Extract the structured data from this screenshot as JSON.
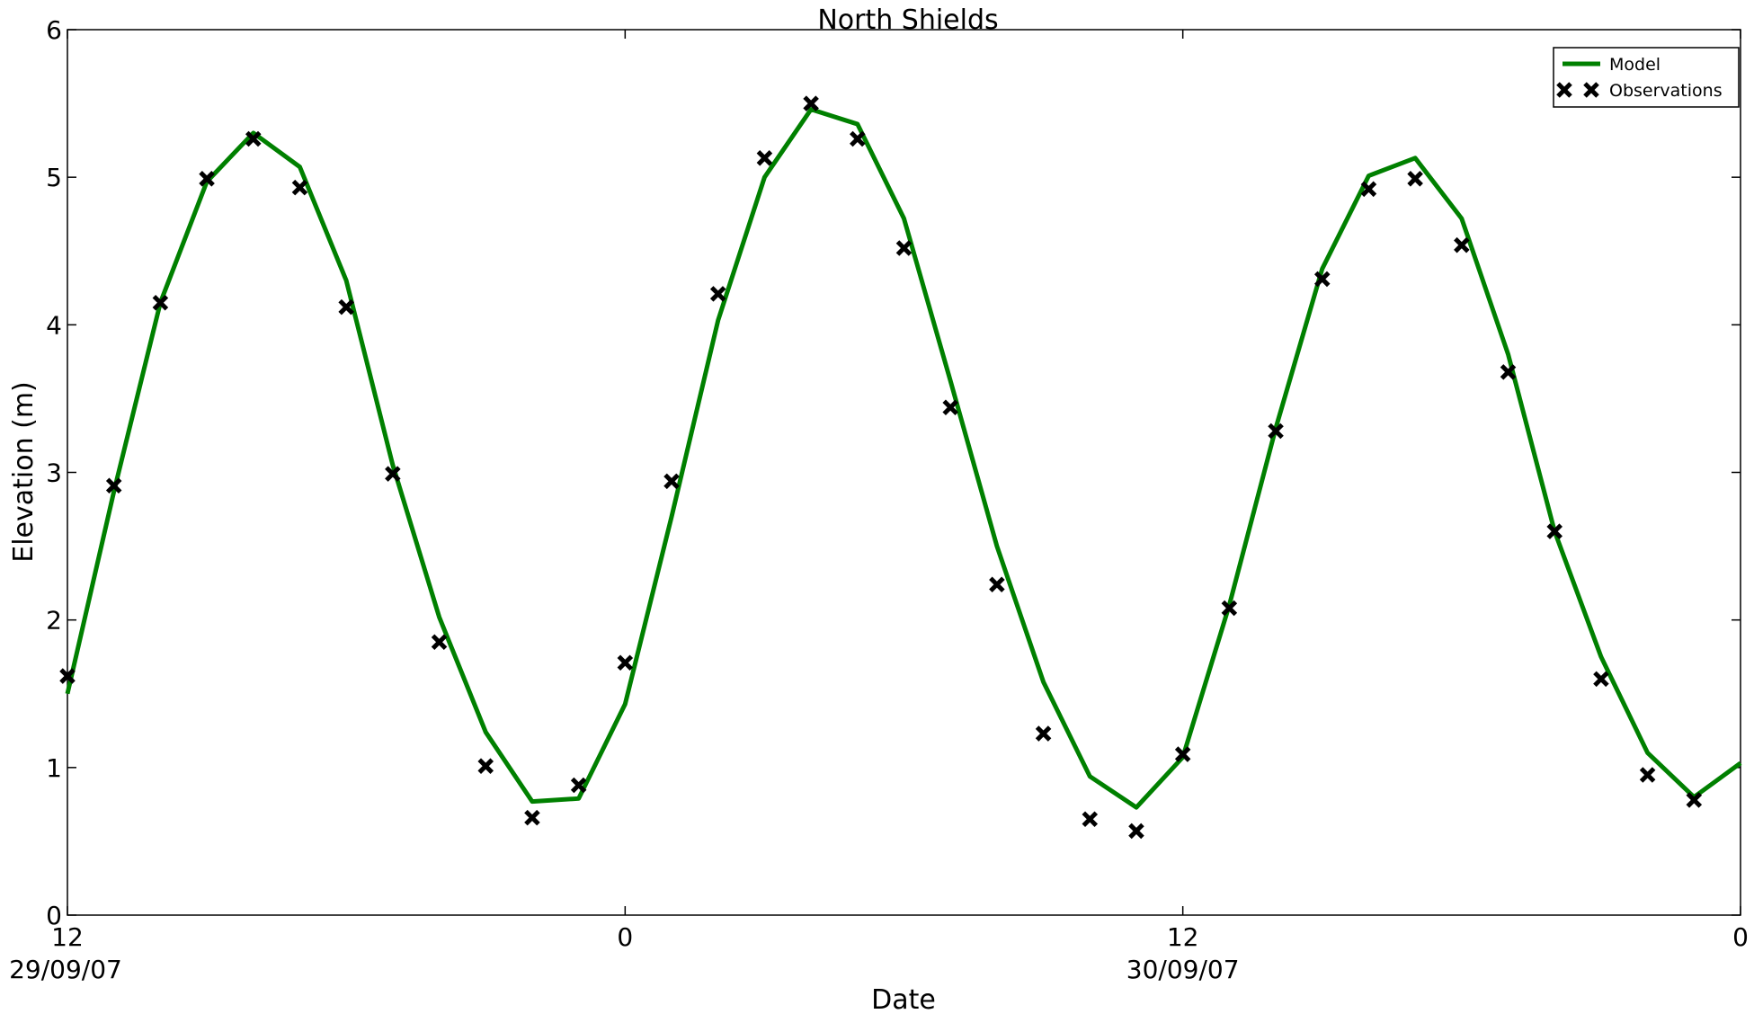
{
  "chart_data": {
    "type": "line",
    "title": "North Shields",
    "x_label": "Date",
    "y_label": "Elevation (m)",
    "x": [
      0,
      1,
      2,
      3,
      4,
      5,
      6,
      7,
      8,
      9,
      10,
      11,
      12,
      13,
      14,
      15,
      16,
      17,
      18,
      19,
      20,
      21,
      22,
      23,
      24,
      25,
      26,
      27,
      28,
      29,
      30,
      31,
      32,
      33,
      34,
      35,
      36
    ],
    "series": [
      {
        "name": "Model",
        "color": "#008000",
        "style": "line",
        "values": [
          1.5,
          2.87,
          4.15,
          4.97,
          5.3,
          5.07,
          4.3,
          3.05,
          2.02,
          1.24,
          0.77,
          0.79,
          1.43,
          2.7,
          4.03,
          5.0,
          5.46,
          5.36,
          4.72,
          3.62,
          2.5,
          1.58,
          0.94,
          0.73,
          1.07,
          2.1,
          3.3,
          4.38,
          5.01,
          5.13,
          4.72,
          3.8,
          2.6,
          1.75,
          1.1,
          0.8,
          1.03
        ]
      },
      {
        "name": "Observations",
        "color": "#000000",
        "style": "marker",
        "values": [
          1.62,
          2.91,
          4.15,
          4.99,
          5.26,
          4.93,
          4.12,
          2.99,
          1.85,
          1.01,
          0.66,
          0.88,
          1.71,
          2.94,
          4.21,
          5.13,
          5.5,
          5.26,
          4.52,
          3.44,
          2.24,
          1.23,
          0.65,
          0.57,
          1.09,
          2.08,
          3.28,
          4.31,
          4.92,
          4.99,
          4.54,
          3.68,
          2.6,
          1.6,
          0.95,
          0.78,
          null
        ]
      }
    ],
    "xlim": [
      0,
      36
    ],
    "xticks": [
      {
        "value": 0,
        "label": "12"
      },
      {
        "value": 12,
        "label": "0"
      },
      {
        "value": 24,
        "label": "12"
      },
      {
        "value": 36,
        "label": "0"
      }
    ],
    "xtick_dates": [
      {
        "value": 0,
        "label": "29/09/07"
      },
      {
        "value": 24,
        "label": "30/09/07"
      }
    ],
    "ylim": [
      0,
      6
    ],
    "yticks": [
      0,
      1,
      2,
      3,
      4,
      5,
      6
    ],
    "legend": "upper right",
    "grid": false
  }
}
